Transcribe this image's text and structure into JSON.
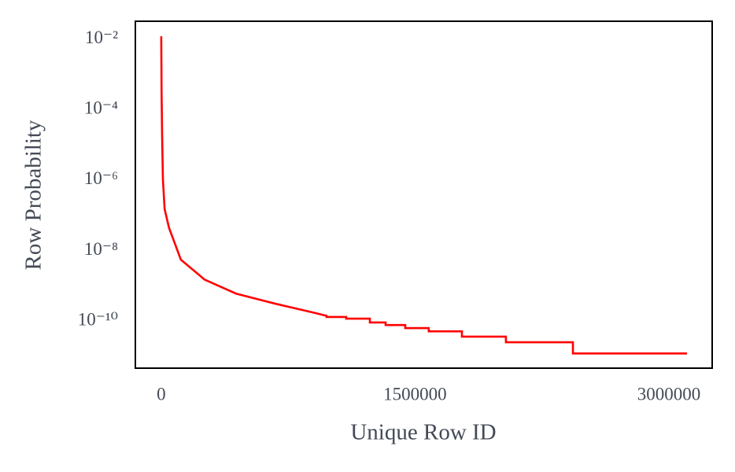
{
  "chart_data": {
    "type": "line",
    "x_label": "Unique Row ID",
    "y_label": "Row Probability",
    "color": "#ff0000",
    "yscale": "log",
    "grid": false,
    "x": [
      0,
      2000,
      5000,
      10000,
      20000,
      46000,
      116000,
      256000,
      442000,
      674000,
      907000,
      977000,
      977000,
      1093000,
      1093000,
      1233000,
      1233000,
      1326000,
      1326000,
      1442000,
      1442000,
      1581000,
      1581000,
      1777000,
      1777000,
      2037000,
      2037000,
      2433000,
      2433000,
      3107000
    ],
    "values": [
      0.012,
      0.0003,
      2e-05,
      1e-06,
      1.5e-07,
      4.4e-08,
      5.5e-09,
      1.5e-09,
      6e-10,
      3.1e-10,
      1.7e-10,
      1.4e-10,
      1.3e-10,
      1.3e-10,
      1.17e-10,
      1.17e-10,
      9.1e-11,
      9.1e-11,
      7.7e-11,
      7.7e-11,
      6.3e-11,
      6.3e-11,
      5.1e-11,
      5.1e-11,
      3.6e-11,
      3.6e-11,
      2.5e-11,
      2.5e-11,
      1.2e-11,
      1.2e-11
    ],
    "xlim": [
      -153000,
      3256000
    ],
    "xticks": [
      0,
      1500000,
      3000000
    ],
    "ylim": [
      0.032,
      4.6e-12
    ],
    "yticks": [
      {
        "value": 0.01,
        "label": "10⁻²"
      },
      {
        "value": 0.0001,
        "label": "10⁻⁴"
      },
      {
        "value": 1e-06,
        "label": "10⁻⁶"
      },
      {
        "value": 1e-08,
        "label": "10⁻⁸"
      },
      {
        "value": 1e-10,
        "label": "10⁻¹⁰"
      }
    ]
  }
}
